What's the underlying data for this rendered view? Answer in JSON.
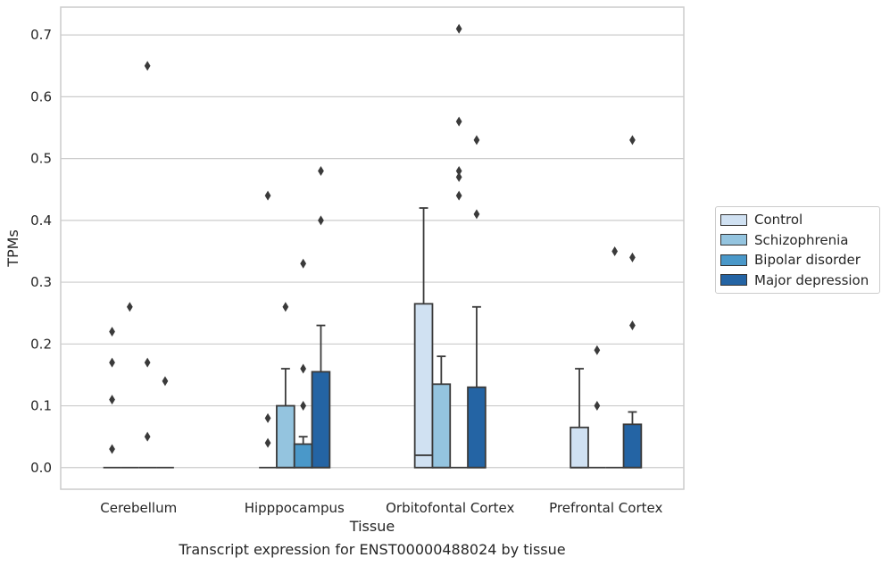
{
  "caption": "Transcript expression for ENST00000488024 by tissue",
  "colors": {
    "Control": "#d0e1f2",
    "Schizophrenia": "#94c4df",
    "Bipolar disorder": "#4a98c9",
    "Major depression": "#2464a4",
    "grid": "#cccccc",
    "frame": "#cccccc",
    "ink": "#3a3a3a"
  },
  "chart_data": {
    "type": "box",
    "xlabel": "Tissue",
    "ylabel": "TPMs",
    "ylim": [
      -0.035,
      0.745
    ],
    "yticks": [
      "0.0",
      "0.1",
      "0.2",
      "0.3",
      "0.4",
      "0.5",
      "0.6",
      "0.7"
    ],
    "grid": "horizontal",
    "legend_position": "right",
    "categories": [
      "Cerebellum",
      "Hipppocampus",
      "Orbitofontal Cortex",
      "Prefrontal Cortex"
    ],
    "series": [
      {
        "name": "Control",
        "boxes": [
          {
            "q1": 0,
            "median": 0,
            "q3": 0,
            "whislo": 0,
            "whishi": 0,
            "fliers": [
              0.03,
              0.11,
              0.17,
              0.22
            ]
          },
          {
            "q1": 0,
            "median": 0,
            "q3": 0,
            "whislo": 0,
            "whishi": 0,
            "fliers": [
              0.04,
              0.08,
              0.44
            ]
          },
          {
            "q1": 0,
            "median": 0.02,
            "q3": 0.265,
            "whislo": 0,
            "whishi": 0.42,
            "fliers": []
          },
          {
            "q1": 0,
            "median": 0,
            "q3": 0.065,
            "whislo": 0,
            "whishi": 0.16,
            "fliers": []
          }
        ]
      },
      {
        "name": "Schizophrenia",
        "boxes": [
          {
            "q1": 0,
            "median": 0,
            "q3": 0,
            "whislo": 0,
            "whishi": 0,
            "fliers": [
              0.26
            ]
          },
          {
            "q1": 0,
            "median": 0,
            "q3": 0.1,
            "whislo": 0,
            "whishi": 0.16,
            "fliers": [
              0.26
            ]
          },
          {
            "q1": 0,
            "median": 0,
            "q3": 0.135,
            "whislo": 0,
            "whishi": 0.18,
            "fliers": []
          },
          {
            "q1": 0,
            "median": 0,
            "q3": 0,
            "whislo": 0,
            "whishi": 0,
            "fliers": [
              0.1,
              0.19
            ]
          }
        ]
      },
      {
        "name": "Bipolar disorder",
        "boxes": [
          {
            "q1": 0,
            "median": 0,
            "q3": 0,
            "whislo": 0,
            "whishi": 0,
            "fliers": [
              0.05,
              0.17,
              0.65
            ]
          },
          {
            "q1": 0,
            "median": 0,
            "q3": 0.038,
            "whislo": 0,
            "whishi": 0.05,
            "fliers": [
              0.1,
              0.16,
              0.33
            ]
          },
          {
            "q1": 0,
            "median": 0,
            "q3": 0,
            "whislo": 0,
            "whishi": 0,
            "fliers": [
              0.44,
              0.47,
              0.48,
              0.56,
              0.71
            ]
          },
          {
            "q1": 0,
            "median": 0,
            "q3": 0,
            "whislo": 0,
            "whishi": 0,
            "fliers": [
              0.35
            ]
          }
        ]
      },
      {
        "name": "Major depression",
        "boxes": [
          {
            "q1": 0,
            "median": 0,
            "q3": 0,
            "whislo": 0,
            "whishi": 0,
            "fliers": [
              0.14
            ]
          },
          {
            "q1": 0,
            "median": 0,
            "q3": 0.155,
            "whislo": 0,
            "whishi": 0.23,
            "fliers": [
              0.4,
              0.48
            ]
          },
          {
            "q1": 0,
            "median": 0,
            "q3": 0.13,
            "whislo": 0,
            "whishi": 0.26,
            "fliers": [
              0.41,
              0.53
            ]
          },
          {
            "q1": 0,
            "median": 0,
            "q3": 0.07,
            "whislo": 0,
            "whishi": 0.09,
            "fliers": [
              0.23,
              0.34,
              0.53
            ]
          }
        ]
      }
    ]
  }
}
